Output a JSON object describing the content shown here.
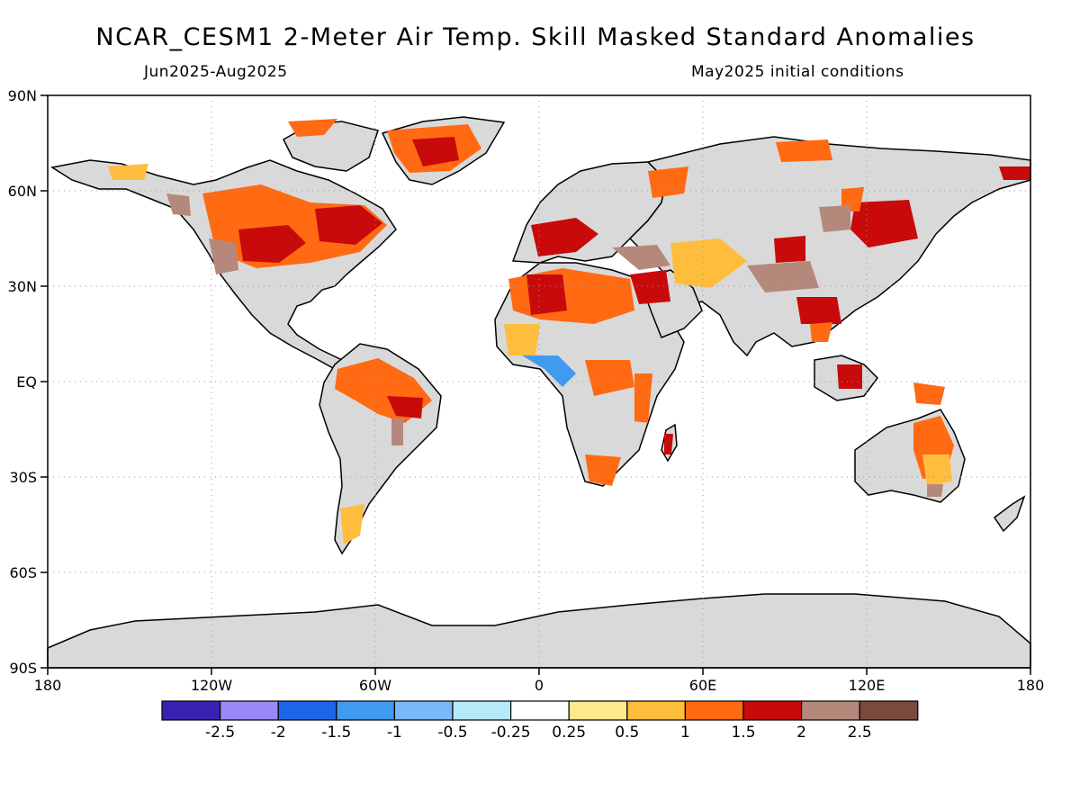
{
  "header": {
    "title": "NCAR_CESM1 2-Meter Air Temp. Skill Masked Standard Anomalies",
    "period": "Jun2025-Aug2025",
    "init": "May2025 initial conditions"
  },
  "map": {
    "lat_labels": [
      "90N",
      "60N",
      "30N",
      "EQ",
      "30S",
      "60S",
      "90S"
    ],
    "lon_labels": [
      "180",
      "120W",
      "60W",
      "0",
      "60E",
      "120E",
      "180"
    ]
  },
  "colorbar": {
    "colors": [
      "#3a20b0",
      "#9b87f5",
      "#1f66e6",
      "#3f9af0",
      "#79b9f7",
      "#b5ebf9",
      "#ffffff",
      "#ffe98a",
      "#ffbd3d",
      "#ff6a12",
      "#c80a0a",
      "#b4897c",
      "#7a4a3e"
    ],
    "labels": [
      "-2.5",
      "-2",
      "-1.5",
      "-1",
      "-0.5",
      "-0.25",
      "0.25",
      "0.5",
      "1",
      "1.5",
      "2",
      "2.5"
    ]
  },
  "colors": {
    "land_masked": "#d9d9d9",
    "anom_05_1": "#ffbd3d",
    "anom_1_15": "#ff6a12",
    "anom_15_2": "#c80a0a",
    "anom_2_25": "#b4897c",
    "anom_cold": "#3f9af0"
  }
}
